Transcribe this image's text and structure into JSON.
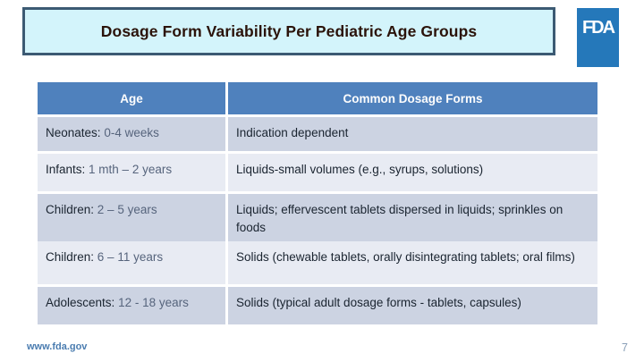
{
  "slide": {
    "title": "Dosage Form Variability Per Pediatric Age Groups",
    "logo_text": "FDA",
    "footer_url": "www.fda.gov",
    "page_number": "7"
  },
  "table": {
    "columns": [
      "Age",
      "Common Dosage Forms"
    ],
    "rows": [
      {
        "age_label": "Neonates:",
        "age_range": "0-4 weeks",
        "dosage": "Indication dependent"
      },
      {
        "age_label": "Infants:",
        "age_range": "1 mth – 2 years",
        "dosage": "Liquids-small volumes (e.g., syrups, solutions)"
      },
      {
        "age_label": "Children:",
        "age_range": "2 – 5 years",
        "dosage": "Liquids; effervescent tablets dispersed in liquids; sprinkles on foods"
      },
      {
        "age_label": "Children:",
        "age_range": "6 – 11 years",
        "dosage": "Solids (chewable tablets, orally disintegrating tablets; oral films)"
      },
      {
        "age_label": "Adolescents:",
        "age_range": "12 - 18 years",
        "dosage": "Solids (typical adult dosage forms - tablets, capsules)"
      }
    ]
  },
  "colors": {
    "header_bg": "#4f81bd",
    "row_band_dark": "#ccd3e2",
    "row_band_light": "#e8ebf3",
    "title_box_bg": "#d3f4fb",
    "title_box_border": "#3c5a73",
    "logo_bg": "#2578ba",
    "footer_link": "#4a7cb0"
  }
}
